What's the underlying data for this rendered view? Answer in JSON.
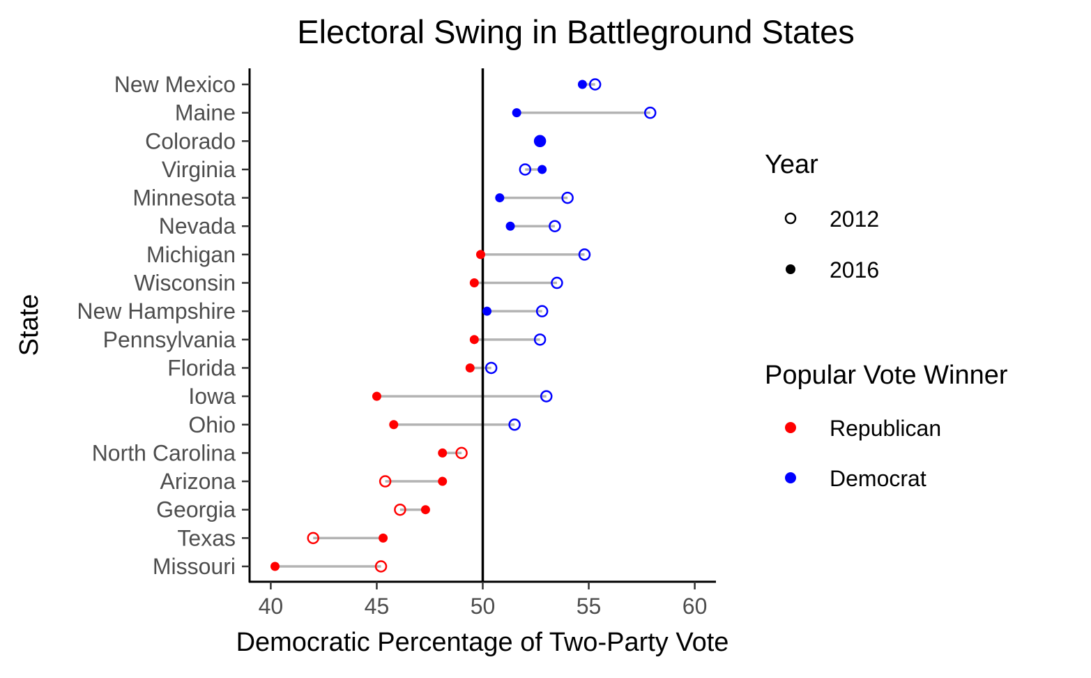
{
  "chart_data": {
    "type": "scatter",
    "subtype": "dumbbell",
    "title": "Electoral Swing in Battleground States",
    "xlabel": "Democratic Percentage of Two-Party Vote",
    "ylabel": "State",
    "xlim": [
      39,
      61
    ],
    "xticks": [
      40,
      45,
      50,
      55,
      60
    ],
    "reference_line_x": 50,
    "grid": false,
    "colors": {
      "Republican": "#ff0000",
      "Democrat": "#0000ff",
      "segment": "#b3b3b3"
    },
    "states": [
      {
        "state": "New Mexico",
        "v2012": 55.3,
        "v2016": 54.7,
        "winner2012": "Democrat",
        "winner2016": "Democrat"
      },
      {
        "state": "Maine",
        "v2012": 57.9,
        "v2016": 51.6,
        "winner2012": "Democrat",
        "winner2016": "Democrat"
      },
      {
        "state": "Colorado",
        "v2012": 52.7,
        "v2016": 52.7,
        "winner2012": "Democrat",
        "winner2016": "Democrat"
      },
      {
        "state": "Virginia",
        "v2012": 52.0,
        "v2016": 52.8,
        "winner2012": "Democrat",
        "winner2016": "Democrat"
      },
      {
        "state": "Minnesota",
        "v2012": 54.0,
        "v2016": 50.8,
        "winner2012": "Democrat",
        "winner2016": "Democrat"
      },
      {
        "state": "Nevada",
        "v2012": 53.4,
        "v2016": 51.3,
        "winner2012": "Democrat",
        "winner2016": "Democrat"
      },
      {
        "state": "Michigan",
        "v2012": 54.8,
        "v2016": 49.9,
        "winner2012": "Democrat",
        "winner2016": "Republican"
      },
      {
        "state": "Wisconsin",
        "v2012": 53.5,
        "v2016": 49.6,
        "winner2012": "Democrat",
        "winner2016": "Republican"
      },
      {
        "state": "New Hampshire",
        "v2012": 52.8,
        "v2016": 50.2,
        "winner2012": "Democrat",
        "winner2016": "Democrat"
      },
      {
        "state": "Pennsylvania",
        "v2012": 52.7,
        "v2016": 49.6,
        "winner2012": "Democrat",
        "winner2016": "Republican"
      },
      {
        "state": "Florida",
        "v2012": 50.4,
        "v2016": 49.4,
        "winner2012": "Democrat",
        "winner2016": "Republican"
      },
      {
        "state": "Iowa",
        "v2012": 53.0,
        "v2016": 45.0,
        "winner2012": "Democrat",
        "winner2016": "Republican"
      },
      {
        "state": "Ohio",
        "v2012": 51.5,
        "v2016": 45.8,
        "winner2012": "Democrat",
        "winner2016": "Republican"
      },
      {
        "state": "North Carolina",
        "v2012": 49.0,
        "v2016": 48.1,
        "winner2012": "Republican",
        "winner2016": "Republican"
      },
      {
        "state": "Arizona",
        "v2012": 45.4,
        "v2016": 48.1,
        "winner2012": "Republican",
        "winner2016": "Republican"
      },
      {
        "state": "Georgia",
        "v2012": 46.1,
        "v2016": 47.3,
        "winner2012": "Republican",
        "winner2016": "Republican"
      },
      {
        "state": "Texas",
        "v2012": 42.0,
        "v2016": 45.3,
        "winner2012": "Republican",
        "winner2016": "Republican"
      },
      {
        "state": "Missouri",
        "v2012": 45.2,
        "v2016": 40.2,
        "winner2012": "Republican",
        "winner2016": "Republican"
      }
    ],
    "legend": {
      "placement": "right",
      "year_title": "Year",
      "year_items": [
        {
          "label": "2012",
          "shape": "open-circle"
        },
        {
          "label": "2016",
          "shape": "filled-circle"
        }
      ],
      "winner_title": "Popular Vote Winner",
      "winner_items": [
        {
          "label": "Republican",
          "color": "#ff0000"
        },
        {
          "label": "Democrat",
          "color": "#0000ff"
        }
      ]
    }
  }
}
